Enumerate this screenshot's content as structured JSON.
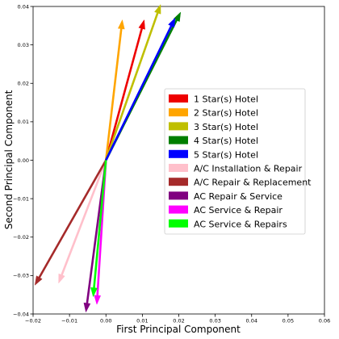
{
  "chart_data": {
    "type": "biplot",
    "title": "",
    "xlabel": "First Principal Component",
    "ylabel": "Second Principal Component",
    "xlim": [
      -0.02,
      0.06
    ],
    "ylim": [
      -0.04,
      0.04
    ],
    "xticks": [
      -0.02,
      -0.01,
      0.0,
      0.01,
      0.02,
      0.03,
      0.04,
      0.05,
      0.06
    ],
    "yticks": [
      -0.04,
      -0.03,
      -0.02,
      -0.01,
      0.0,
      0.01,
      0.02,
      0.03,
      0.04
    ],
    "xtick_labels": [
      "−0.02",
      "−0.01",
      "0.00",
      "0.01",
      "0.02",
      "0.03",
      "0.04",
      "0.05",
      "0.06"
    ],
    "ytick_labels": [
      "−0.04",
      "−0.03",
      "−0.02",
      "−0.01",
      "0.00",
      "0.01",
      "0.02",
      "0.03",
      "0.04"
    ],
    "grid": false,
    "legend_position": "center-right",
    "series": [
      {
        "name": "1 Star(s) Hotel",
        "color": "#ee0000",
        "x": 0.0105,
        "y": 0.0365
      },
      {
        "name": "2 Star(s) Hotel",
        "color": "#ffa500",
        "x": 0.0045,
        "y": 0.0365
      },
      {
        "name": "3 Star(s) Hotel",
        "color": "#bfbf00",
        "x": 0.015,
        "y": 0.0405
      },
      {
        "name": "4 Star(s) Hotel",
        "color": "#007f00",
        "x": 0.0205,
        "y": 0.0385
      },
      {
        "name": "5 Star(s) Hotel",
        "color": "#0000ff",
        "x": 0.019,
        "y": 0.037
      },
      {
        "name": "A/C Installation & Repair",
        "color": "#ffc0cb",
        "x": -0.013,
        "y": -0.032
      },
      {
        "name": "A/C Repair & Replacement",
        "color": "#a52a2a",
        "x": -0.0195,
        "y": -0.0325
      },
      {
        "name": "AC Repair & Service",
        "color": "#800080",
        "x": -0.0055,
        "y": -0.0395
      },
      {
        "name": "AC Service & Repair",
        "color": "#ff00ff",
        "x": -0.0025,
        "y": -0.0375
      },
      {
        "name": "AC Service & Repairs",
        "color": "#00ff00",
        "x": -0.0035,
        "y": -0.0355
      }
    ]
  }
}
